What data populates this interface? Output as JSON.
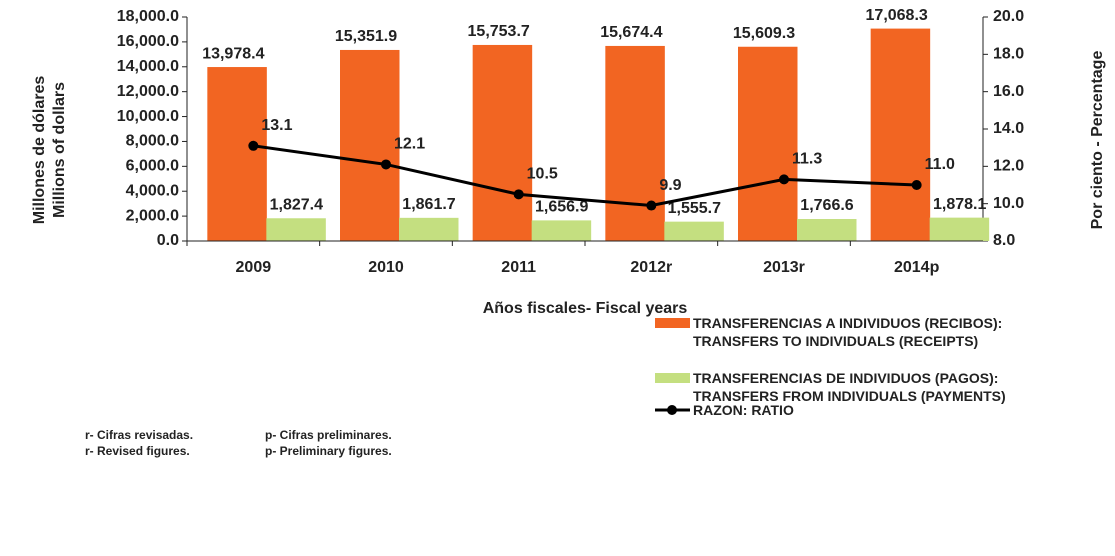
{
  "chart_data": {
    "type": "bar_line",
    "categories": [
      "2009",
      "2010",
      "2011",
      "2012r",
      "2013r",
      "2014p"
    ],
    "ylabel": [
      "Millones de dólares",
      "Millions of dollars"
    ],
    "y2label": "Por ciento - Percentage",
    "xlabel": "Años fiscales- Fiscal years",
    "ylim": [
      0,
      18000
    ],
    "yticks": [
      {
        "value": 0,
        "label": "0.0"
      },
      {
        "value": 2000,
        "label": "2,000.0"
      },
      {
        "value": 4000,
        "label": "4,000.0"
      },
      {
        "value": 6000,
        "label": "6,000.0"
      },
      {
        "value": 8000,
        "label": "8,000.0"
      },
      {
        "value": 10000,
        "label": "10,000.0"
      },
      {
        "value": 12000,
        "label": "12,000.0"
      },
      {
        "value": 14000,
        "label": "14,000.0"
      },
      {
        "value": 16000,
        "label": "16,000.0"
      },
      {
        "value": 18000,
        "label": "18,000.0"
      }
    ],
    "y2lim": [
      8,
      20
    ],
    "y2ticks": [
      {
        "value": 8,
        "label": "8.0"
      },
      {
        "value": 10,
        "label": "10.0"
      },
      {
        "value": 12,
        "label": "12.0"
      },
      {
        "value": 14,
        "label": "14.0"
      },
      {
        "value": 16,
        "label": "16.0"
      },
      {
        "value": 18,
        "label": "18.0"
      },
      {
        "value": 20,
        "label": "20.0"
      }
    ],
    "series": [
      {
        "name": "TRANSFERENCIAS A INDIVIDUOS (RECIBOS):\nTRANSFERS TO INDIVIDUALS (RECEIPTS)",
        "type": "bar",
        "color": "#f26522",
        "values": [
          13978.4,
          15351.9,
          15753.7,
          15674.4,
          15609.3,
          17068.3
        ],
        "value_labels": [
          "13,978.4",
          "15,351.9",
          "15,753.7",
          "15,674.4",
          "15,609.3",
          "17,068.3"
        ]
      },
      {
        "name": "TRANSFERENCIAS DE INDIVIDUOS (PAGOS):\nTRANSFERS FROM INDIVIDUALS (PAYMENTS)",
        "type": "bar",
        "color": "#c4df80",
        "values": [
          1827.4,
          1861.7,
          1656.9,
          1555.7,
          1766.6,
          1878.1
        ],
        "value_labels": [
          "1,827.4",
          "1,861.7",
          "1,656.9",
          "1,555.7",
          "1,766.6",
          "1,878.1"
        ]
      },
      {
        "name": "RAZON: RATIO",
        "type": "line",
        "axis": "y2",
        "color": "#000000",
        "values": [
          13.1,
          12.1,
          10.5,
          9.9,
          11.3,
          11.0
        ],
        "value_labels": [
          "13.1",
          "12.1",
          "10.5",
          "9.9",
          "11.3",
          "11.0"
        ]
      }
    ],
    "notes": [
      "r- Cifras revisadas.",
      "p- Cifras preliminares.",
      "r- Revised figures.",
      "p- Preliminary figures."
    ]
  }
}
